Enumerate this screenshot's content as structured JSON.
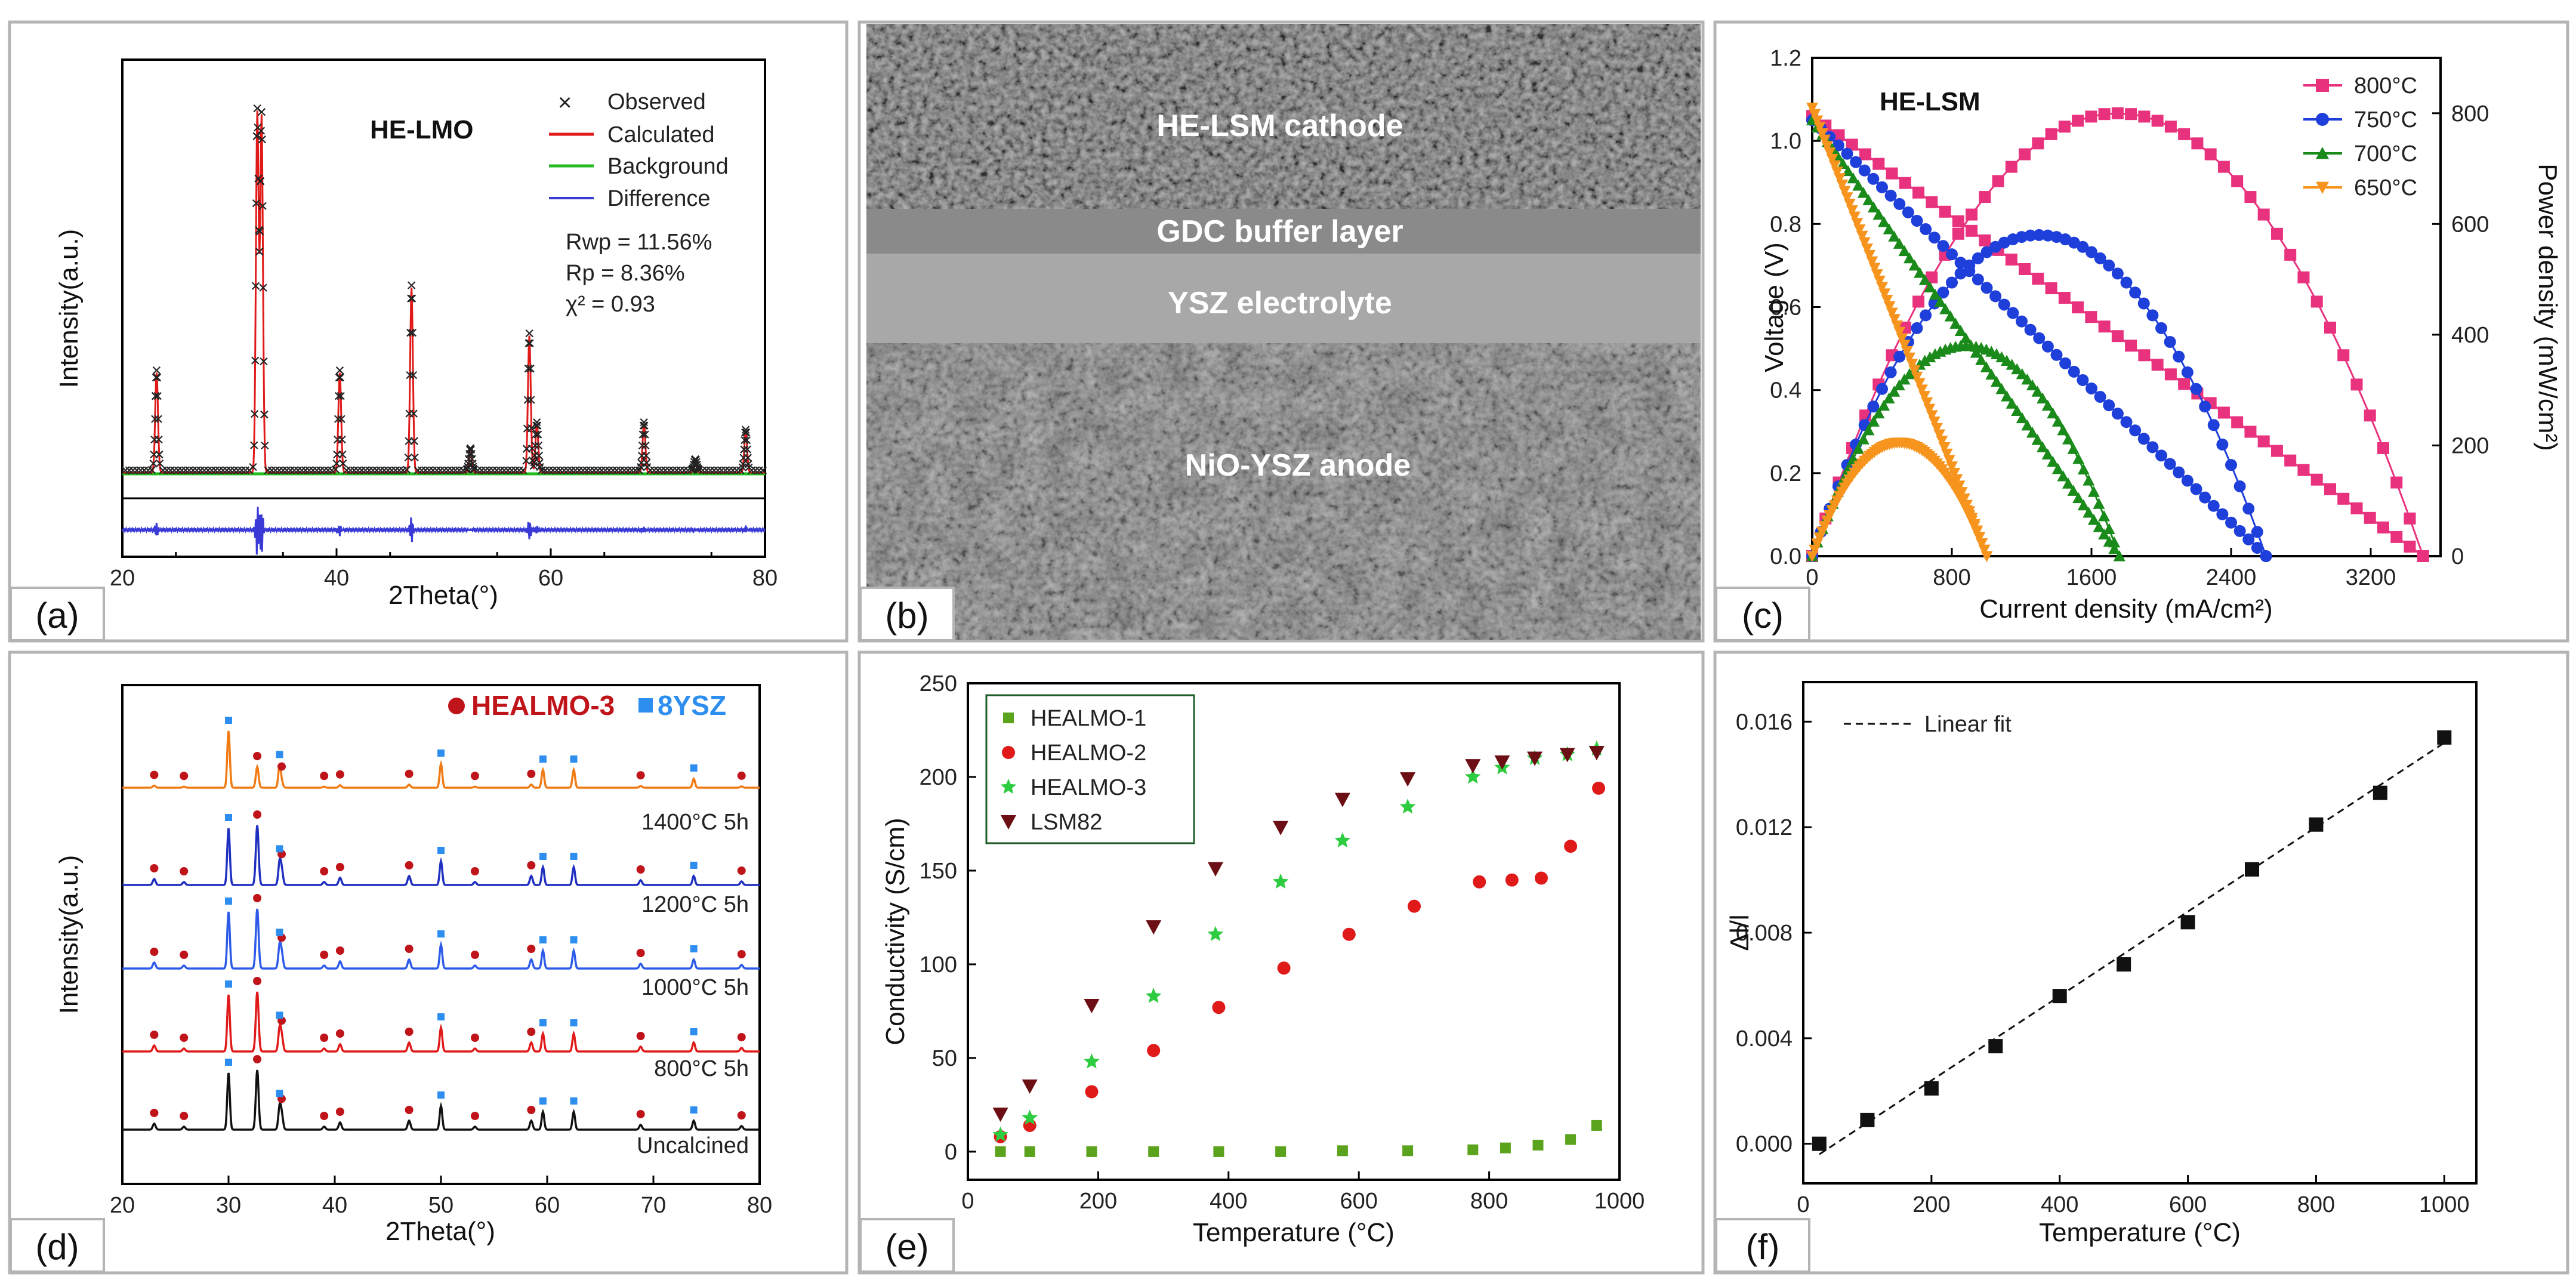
{
  "figure": {
    "colors": {
      "frame": "#b4b4b4",
      "red": "#e01919",
      "green": "#22bb22",
      "blue": "#3a3ad6",
      "pink": "#e8327e",
      "cblue": "#1f3fdb",
      "cgreen": "#1a8a1a",
      "orange": "#f7941d",
      "xrd_red": "#c0141b",
      "xrd_sq": "#2d8ef0",
      "maroon": "#6b0f14",
      "olive": "#5ca31d",
      "lime": "#2ecc40"
    }
  },
  "chart_data": [
    {
      "panel": "(a)",
      "type": "line",
      "title": "HE-LMO",
      "xlabel": "2Theta(°)",
      "ylabel": "Intensity(a.u.)",
      "xlim": [
        20,
        80
      ],
      "xticks": [
        "20",
        "40",
        "60",
        "80"
      ],
      "legend": [
        "Observed",
        "Calculated",
        "Background",
        "Difference"
      ],
      "stats": [
        "Rwp = 11.56%",
        "Rp = 8.36%",
        "χ² = 0.93"
      ],
      "peaks_2theta": [
        23.2,
        32.6,
        33.0,
        40.3,
        47.0,
        52.5,
        58.0,
        58.7,
        68.7,
        73.5,
        78.2
      ],
      "peaks_rel_intensity": [
        0.27,
        0.97,
        0.96,
        0.27,
        0.5,
        0.06,
        0.37,
        0.13,
        0.13,
        0.03,
        0.11
      ],
      "series": [
        {
          "name": "Observed",
          "values": []
        },
        {
          "name": "Calculated",
          "values": []
        }
      ]
    },
    {
      "panel": "(b)",
      "type": "image",
      "labels": [
        "HE-LSM cathode",
        "GDC buffer layer",
        "YSZ electrolyte",
        "NiO-YSZ anode"
      ]
    },
    {
      "panel": "(c)",
      "type": "line",
      "title": "HE-LSM",
      "xlabel": "Current density (mA/cm²)",
      "ylabel": "Voltage (V)",
      "y2label": "Power density (mW/cm²)",
      "xlim": [
        0,
        3600
      ],
      "ylim": [
        0,
        1.2
      ],
      "y2lim": [
        0,
        900
      ],
      "xticks": [
        "0",
        "800",
        "1600",
        "2400",
        "3200"
      ],
      "yticks": [
        "0.0",
        "0.2",
        "0.4",
        "0.6",
        "0.8",
        "1.0",
        "1.2"
      ],
      "y2ticks": [
        "0",
        "200",
        "400",
        "600",
        "800"
      ],
      "series": [
        {
          "name": "800°C",
          "ocv": 1.06,
          "jmax": 3500,
          "peak_power": 800
        },
        {
          "name": "750°C",
          "ocv": 1.05,
          "jmax": 2600,
          "peak_power": 580
        },
        {
          "name": "700°C",
          "ocv": 1.05,
          "jmax": 1760,
          "peak_power": 380
        },
        {
          "name": "650°C",
          "ocv": 1.08,
          "jmax": 1000,
          "peak_power": 205
        }
      ]
    },
    {
      "panel": "(d)",
      "type": "line",
      "xlabel": "2Theta(°)",
      "ylabel": "Intensity(a.u.)",
      "xlim": [
        20,
        80
      ],
      "xticks": [
        "20",
        "30",
        "40",
        "50",
        "60",
        "70",
        "80"
      ],
      "legend": [
        "HEALMO-3",
        "8YSZ"
      ],
      "healmo3_peaks": [
        23.0,
        25.8,
        32.7,
        35.0,
        39.0,
        40.5,
        47.0,
        53.2,
        58.5,
        68.8,
        78.3
      ],
      "ysz_peaks": [
        30.0,
        34.8,
        50.0,
        59.6,
        62.5,
        73.8
      ],
      "series": [
        {
          "name": "Uncalcined",
          "label": "Uncalcined"
        },
        {
          "name": "800°C 5h",
          "label": "800°C 5h"
        },
        {
          "name": "1000°C 5h",
          "label": "1000°C 5h"
        },
        {
          "name": "1200°C 5h",
          "label": "1200°C 5h"
        },
        {
          "name": "1400°C 5h",
          "label": "1400°C 5h"
        }
      ]
    },
    {
      "panel": "(e)",
      "type": "scatter",
      "xlabel": "Temperature (°C)",
      "ylabel": "Conductivity (S/cm)",
      "xlim": [
        0,
        1000
      ],
      "ylim": [
        -15,
        250
      ],
      "xticks": [
        "0",
        "200",
        "400",
        "600",
        "800",
        "1000"
      ],
      "yticks": [
        "0",
        "50",
        "100",
        "150",
        "200",
        "250"
      ],
      "series": [
        {
          "name": "HEALMO-1",
          "x": [
            50,
            95,
            190,
            285,
            385,
            480,
            575,
            675,
            775,
            825,
            875,
            925,
            965
          ],
          "y": [
            0,
            0,
            0,
            0,
            0,
            0,
            0.5,
            0.5,
            1,
            2,
            3.5,
            6.5,
            14
          ]
        },
        {
          "name": "HEALMO-2",
          "x": [
            50,
            95,
            190,
            285,
            385,
            485,
            585,
            685,
            785,
            835,
            880,
            925,
            968
          ],
          "y": [
            8,
            14,
            32,
            54,
            77,
            98,
            116,
            131,
            144,
            145,
            146,
            163,
            194
          ]
        },
        {
          "name": "HEALMO-3",
          "x": [
            50,
            95,
            190,
            285,
            380,
            480,
            575,
            675,
            775,
            820,
            870,
            920,
            965
          ],
          "y": [
            9,
            18,
            48,
            83,
            116,
            144,
            166,
            184,
            200,
            205,
            210,
            212,
            215
          ]
        },
        {
          "name": "LSM82",
          "x": [
            50,
            95,
            190,
            285,
            380,
            480,
            575,
            675,
            775,
            820,
            870,
            920,
            965
          ],
          "y": [
            20,
            35,
            78,
            120,
            151,
            173,
            188,
            199,
            206,
            208,
            210,
            212,
            213
          ]
        }
      ]
    },
    {
      "panel": "(f)",
      "type": "scatter",
      "xlabel": "Temperature (°C)",
      "ylabel": "Δl/l",
      "xlim": [
        0,
        1050
      ],
      "ylim": [
        -0.0015,
        0.0175
      ],
      "xticks": [
        "0",
        "200",
        "400",
        "600",
        "800",
        "1000"
      ],
      "yticks": [
        "0.000",
        "0.004",
        "0.008",
        "0.012",
        "0.016"
      ],
      "legend": [
        "Linear fit"
      ],
      "fit": {
        "x": [
          25,
          1000
        ],
        "y": [
          -0.0004,
          0.0152
        ]
      },
      "series": [
        {
          "name": "data",
          "x": [
            25,
            100,
            200,
            300,
            400,
            500,
            600,
            700,
            800,
            900,
            1000
          ],
          "y": [
            0.0,
            0.0009,
            0.0021,
            0.0037,
            0.0056,
            0.0068,
            0.0084,
            0.0104,
            0.0121,
            0.0133,
            0.0154
          ]
        }
      ]
    }
  ]
}
